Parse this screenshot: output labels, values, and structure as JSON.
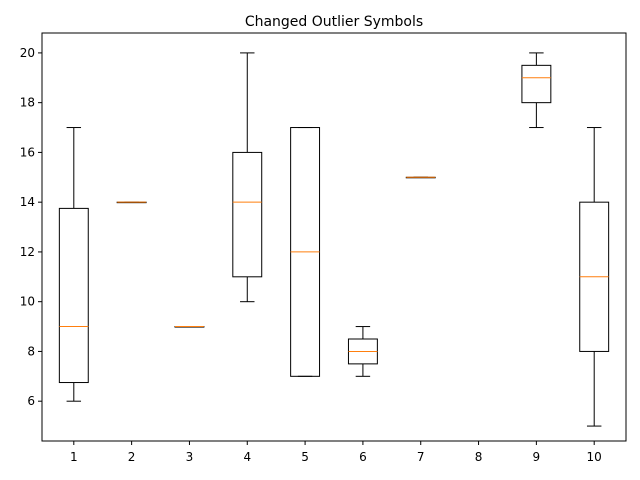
{
  "chart_data": {
    "type": "box",
    "title": "Changed Outlier Symbols",
    "xlabel": "",
    "ylabel": "",
    "categories": [
      "1",
      "2",
      "3",
      "4",
      "5",
      "6",
      "7",
      "8",
      "9",
      "10"
    ],
    "ylim": [
      4.4,
      20.8
    ],
    "yticks": [
      6,
      8,
      10,
      12,
      14,
      16,
      18,
      20
    ],
    "grid": false,
    "boxes": [
      {
        "whislo": 6,
        "q1": 6.75,
        "med": 9,
        "q3": 13.75,
        "whishi": 17
      },
      {
        "whislo": 14,
        "q1": 14,
        "med": 14,
        "q3": 14,
        "whishi": 14
      },
      {
        "whislo": 9,
        "q1": 9,
        "med": 9,
        "q3": 9,
        "whishi": 9
      },
      {
        "whislo": 10,
        "q1": 11,
        "med": 14,
        "q3": 16,
        "whishi": 20
      },
      {
        "whislo": 7,
        "q1": 7,
        "med": 12,
        "q3": 17,
        "whishi": 17
      },
      {
        "whislo": 7,
        "q1": 7.5,
        "med": 8,
        "q3": 8.5,
        "whishi": 9
      },
      {
        "whislo": 15,
        "q1": 15,
        "med": 15,
        "q3": 15,
        "whishi": 15
      },
      null,
      {
        "whislo": 17,
        "q1": 18,
        "med": 19,
        "q3": 19.5,
        "whishi": 20
      },
      {
        "whislo": 5,
        "q1": 8,
        "med": 11,
        "q3": 14,
        "whishi": 17
      }
    ],
    "colors": {
      "box": "#000000",
      "median": "#ff7f0e"
    }
  }
}
